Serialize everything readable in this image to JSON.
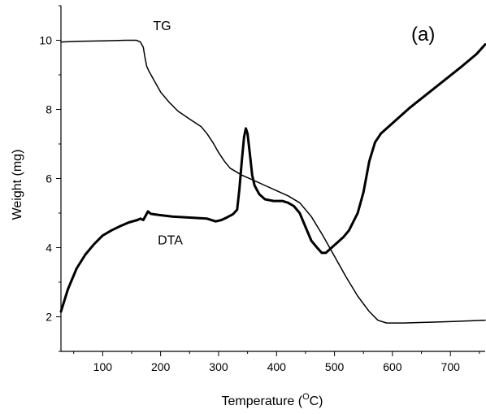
{
  "chart_data": {
    "type": "line",
    "panel_label": "(a)",
    "xlabel_prefix": "Temperature (",
    "xlabel_sup": "O",
    "xlabel_suffix": "C)",
    "ylabel": "Weight (mg)",
    "xlim": [
      28,
      760
    ],
    "ylim": [
      1.0,
      11.0
    ],
    "x_ticks": [
      100,
      200,
      300,
      400,
      500,
      600,
      700
    ],
    "y_ticks": [
      2,
      4,
      6,
      8,
      10
    ],
    "grid": false,
    "series": [
      {
        "name": "TG",
        "stroke_width": 1.5,
        "label_at": [
          187,
          10.3
        ],
        "points": [
          [
            28,
            9.95
          ],
          [
            60,
            9.97
          ],
          [
            100,
            9.98
          ],
          [
            140,
            10.0
          ],
          [
            158,
            10.0
          ],
          [
            165,
            9.95
          ],
          [
            170,
            9.8
          ],
          [
            173,
            9.5
          ],
          [
            176,
            9.25
          ],
          [
            180,
            9.1
          ],
          [
            190,
            8.8
          ],
          [
            200,
            8.5
          ],
          [
            215,
            8.2
          ],
          [
            230,
            7.95
          ],
          [
            250,
            7.72
          ],
          [
            270,
            7.5
          ],
          [
            280,
            7.3
          ],
          [
            290,
            7.05
          ],
          [
            300,
            6.75
          ],
          [
            310,
            6.5
          ],
          [
            320,
            6.3
          ],
          [
            340,
            6.1
          ],
          [
            360,
            5.95
          ],
          [
            380,
            5.8
          ],
          [
            400,
            5.65
          ],
          [
            420,
            5.5
          ],
          [
            440,
            5.3
          ],
          [
            460,
            4.9
          ],
          [
            480,
            4.35
          ],
          [
            500,
            3.75
          ],
          [
            520,
            3.15
          ],
          [
            540,
            2.6
          ],
          [
            560,
            2.15
          ],
          [
            575,
            1.9
          ],
          [
            590,
            1.82
          ],
          [
            620,
            1.82
          ],
          [
            660,
            1.84
          ],
          [
            700,
            1.86
          ],
          [
            760,
            1.9
          ]
        ]
      },
      {
        "name": "DTA",
        "stroke_width": 3,
        "label_at": [
          195,
          4.1
        ],
        "points": [
          [
            28,
            2.15
          ],
          [
            40,
            2.8
          ],
          [
            55,
            3.4
          ],
          [
            70,
            3.8
          ],
          [
            85,
            4.1
          ],
          [
            100,
            4.35
          ],
          [
            115,
            4.5
          ],
          [
            130,
            4.62
          ],
          [
            145,
            4.73
          ],
          [
            160,
            4.8
          ],
          [
            165,
            4.84
          ],
          [
            170,
            4.8
          ],
          [
            175,
            4.95
          ],
          [
            178,
            5.05
          ],
          [
            183,
            4.98
          ],
          [
            195,
            4.95
          ],
          [
            220,
            4.9
          ],
          [
            250,
            4.87
          ],
          [
            280,
            4.84
          ],
          [
            295,
            4.76
          ],
          [
            305,
            4.8
          ],
          [
            315,
            4.88
          ],
          [
            325,
            4.97
          ],
          [
            332,
            5.1
          ],
          [
            336,
            5.7
          ],
          [
            340,
            6.5
          ],
          [
            344,
            7.2
          ],
          [
            347,
            7.45
          ],
          [
            350,
            7.3
          ],
          [
            354,
            6.7
          ],
          [
            358,
            6.1
          ],
          [
            362,
            5.8
          ],
          [
            370,
            5.55
          ],
          [
            380,
            5.4
          ],
          [
            395,
            5.35
          ],
          [
            410,
            5.35
          ],
          [
            420,
            5.3
          ],
          [
            430,
            5.2
          ],
          [
            440,
            5.0
          ],
          [
            450,
            4.6
          ],
          [
            460,
            4.2
          ],
          [
            470,
            4.0
          ],
          [
            478,
            3.85
          ],
          [
            485,
            3.85
          ],
          [
            495,
            4.0
          ],
          [
            505,
            4.15
          ],
          [
            515,
            4.3
          ],
          [
            525,
            4.5
          ],
          [
            540,
            5.0
          ],
          [
            550,
            5.6
          ],
          [
            560,
            6.5
          ],
          [
            570,
            7.05
          ],
          [
            580,
            7.3
          ],
          [
            600,
            7.6
          ],
          [
            630,
            8.05
          ],
          [
            660,
            8.45
          ],
          [
            690,
            8.85
          ],
          [
            720,
            9.25
          ],
          [
            745,
            9.6
          ],
          [
            760,
            9.88
          ]
        ]
      }
    ]
  }
}
